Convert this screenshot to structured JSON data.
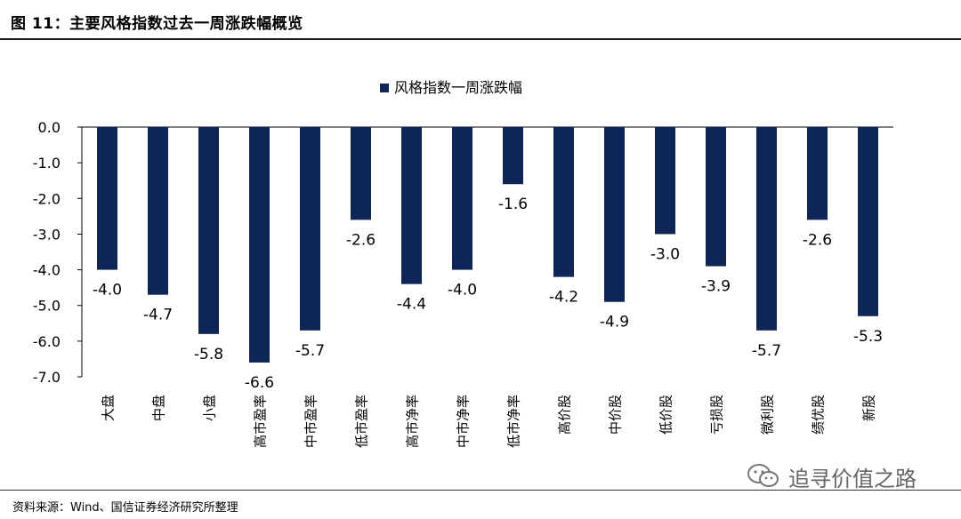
{
  "header": {
    "title": "图 11：主要风格指数过去一周涨跌幅概览"
  },
  "chart_data": {
    "type": "bar",
    "legend": "风格指数一周涨跌幅",
    "legend_position": "top",
    "categories": [
      "大盘",
      "中盘",
      "小盘",
      "高市盈率",
      "中市盈率",
      "低市盈率",
      "高市净率",
      "中市净率",
      "低市净率",
      "高价股",
      "中价股",
      "低价股",
      "亏损股",
      "微利股",
      "绩优股",
      "新股"
    ],
    "values": [
      -4.0,
      -4.7,
      -5.8,
      -6.6,
      -5.7,
      -2.6,
      -4.4,
      -4.0,
      -1.6,
      -4.2,
      -4.9,
      -3.0,
      -3.9,
      -5.7,
      -2.6,
      -5.3
    ],
    "ylim": [
      -7.0,
      0.0
    ],
    "yticks": [
      "0.0",
      "-1.0",
      "-2.0",
      "-3.0",
      "-4.0",
      "-5.0",
      "-6.0",
      "-7.0"
    ],
    "bar_color": "#0d2557",
    "grid": false
  },
  "footer": {
    "source": "资料来源：Wind、国信证券经济研究所整理"
  },
  "watermark": {
    "text": "追寻价值之路",
    "icon": "wechat-icon"
  }
}
